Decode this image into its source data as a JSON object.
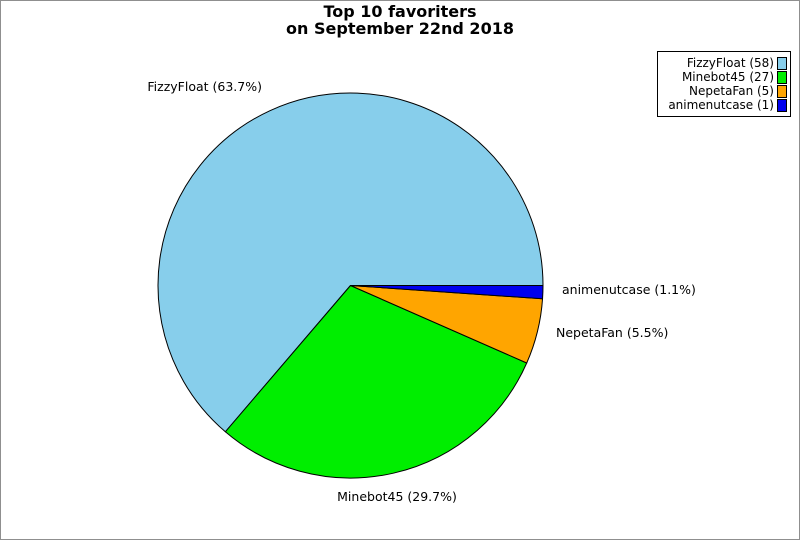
{
  "title": {
    "line1": "Top 10 favoriters",
    "line2": "on September 22nd 2018"
  },
  "chart_data": {
    "type": "pie",
    "title": "Top 10 favoriters on September 22nd 2018",
    "categories": [
      "FizzyFloat",
      "Minebot45",
      "NepetaFan",
      "animenutcase"
    ],
    "values": [
      58,
      27,
      5,
      1
    ],
    "percentages": [
      63.7,
      29.7,
      5.5,
      1.1
    ],
    "colors": [
      "#87CEEB",
      "#00EE00",
      "#FFA500",
      "#0000EE"
    ],
    "edge_color": "#000000",
    "start_angle_deg": 0,
    "direction": "counterclockwise",
    "legend_position": "upper right",
    "slice_labels": [
      "FizzyFloat (63.7%)",
      "Minebot45 (29.7%)",
      "NepetaFan (5.5%)",
      "animenutcase (1.1%)"
    ],
    "legend_labels": [
      "FizzyFloat (58)",
      "Minebot45 (27)",
      "NepetaFan (5)",
      "animenutcase (1)"
    ]
  }
}
